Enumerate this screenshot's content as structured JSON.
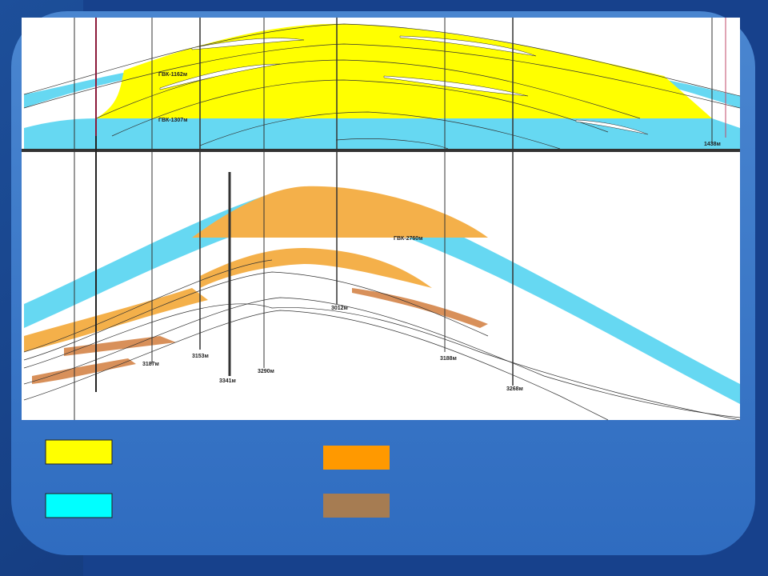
{
  "top_section": {
    "labels": [
      "ГВК-1162м",
      "ГВК-1307м",
      "1438м"
    ]
  },
  "bottom_section": {
    "labels": [
      "ГВК-2760м",
      "3012м",
      "3153м",
      "3187м",
      "3341м",
      "3290м",
      "3188м",
      "3268м"
    ]
  }
}
